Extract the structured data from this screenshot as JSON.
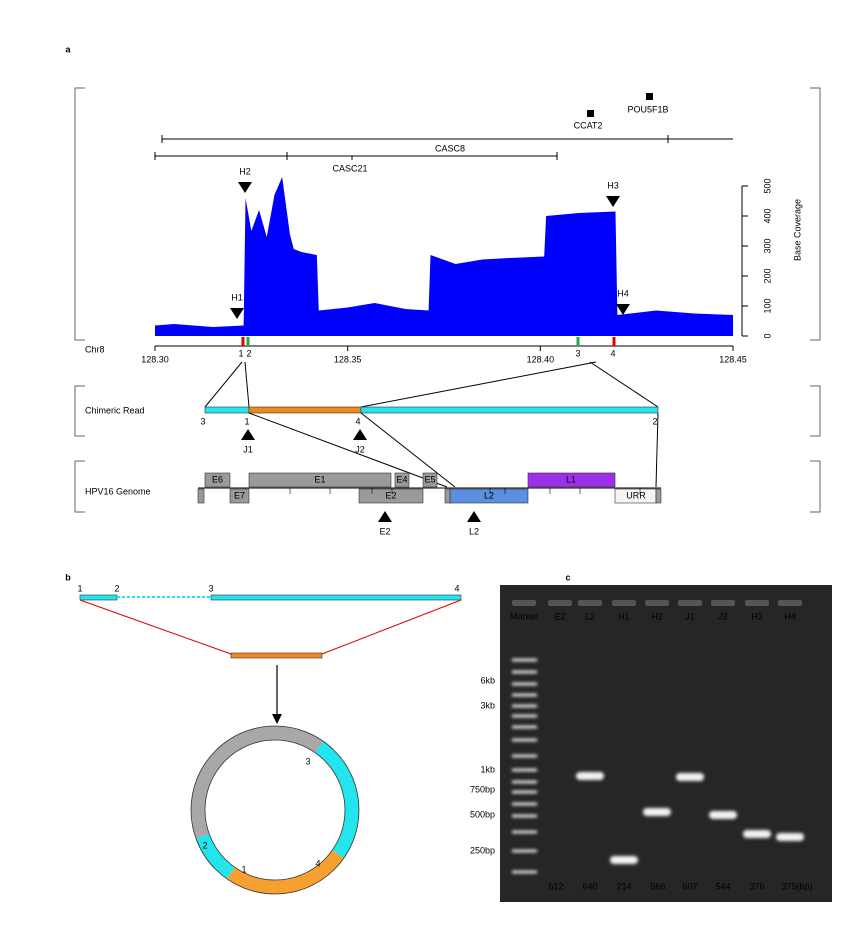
{
  "panel_labels": [
    "a",
    "b",
    "c"
  ],
  "chart_data": {
    "type": "area",
    "xlabel": "Chr8",
    "ylabel": "Base Coverage",
    "color": "#0000ff",
    "x": [
      128.3,
      128.305,
      128.315,
      128.323,
      128.3235,
      128.325,
      128.327,
      128.329,
      128.331,
      128.333,
      128.335,
      128.336,
      128.338,
      128.342,
      128.3425,
      128.35,
      128.357,
      128.365,
      128.371,
      128.3715,
      128.378,
      128.385,
      128.392,
      128.401,
      128.4015,
      128.41,
      128.4195,
      128.42,
      128.43,
      128.44,
      128.45
    ],
    "values": [
      35,
      40,
      30,
      35,
      460,
      350,
      420,
      330,
      470,
      530,
      340,
      290,
      280,
      270,
      85,
      95,
      110,
      90,
      85,
      270,
      240,
      255,
      260,
      265,
      400,
      410,
      415,
      70,
      85,
      75,
      70
    ],
    "xlim": [
      128.3,
      128.45
    ],
    "xticks": [
      {
        "value": 128.3,
        "label": "128.30"
      },
      128.35,
      {
        "value": 128.4,
        "label": "128.40"
      },
      128.45
    ],
    "ylim": [
      0,
      500
    ],
    "yticks": [
      0,
      100,
      200,
      300,
      400,
      500
    ]
  },
  "genes": [
    "CCAT2",
    "POU5F1B",
    "CASC8",
    "CASC21"
  ],
  "sites": [
    "H1",
    "H2",
    "H3",
    "H4"
  ],
  "junctions": [
    "1",
    "2",
    "3",
    "4"
  ],
  "chimeric_read": {
    "label": "Chimeric Read",
    "sites": [
      "J1",
      "J2"
    ]
  },
  "hpv16": {
    "label": "HPV16 Genome",
    "genes": [
      "E6",
      "E7",
      "E1",
      "E4",
      "E5",
      "E2",
      "L2",
      "L1",
      "URR"
    ],
    "sites": [
      "E2",
      "L2"
    ]
  },
  "gel": {
    "lanes": [
      "Marker",
      "E2",
      "L2",
      "H1",
      "H2",
      "J1",
      "J2",
      "H3",
      "H4"
    ],
    "markers": [
      "6kb",
      "3kb",
      "1kb",
      "750bp",
      "500bp",
      "250bp"
    ],
    "sizes": [
      "612",
      "640",
      "214",
      "566",
      "607",
      "544",
      "376",
      "375(bp)"
    ]
  }
}
